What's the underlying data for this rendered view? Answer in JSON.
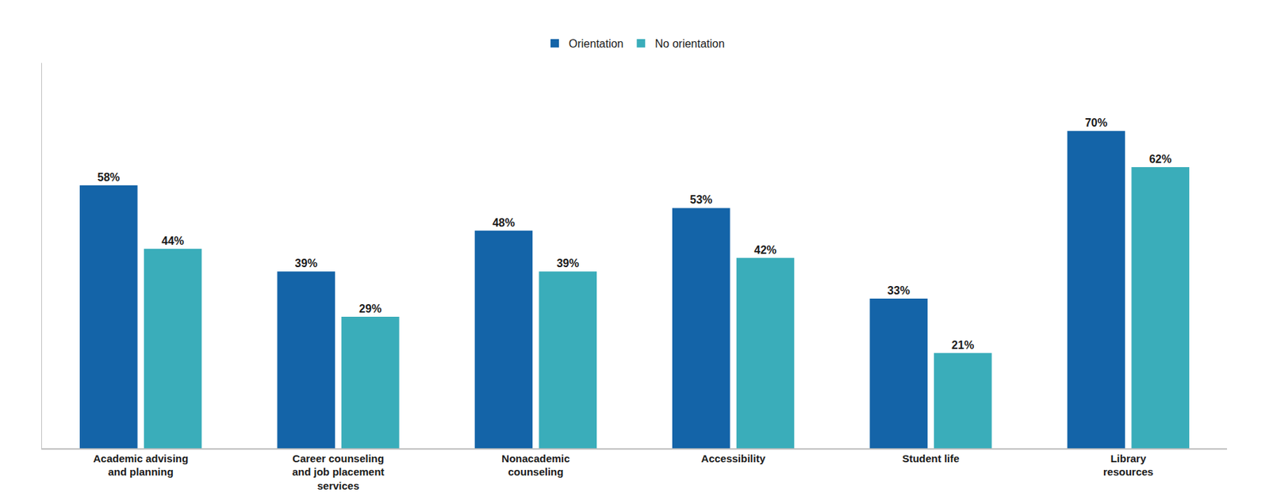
{
  "chart_data": {
    "type": "bar",
    "categories": [
      "Academic advising\nand planning",
      "Career counseling\nand job placement\nservices",
      "Nonacademic\ncounseling",
      "Accessibility",
      "Student life",
      "Library\nresources"
    ],
    "series": [
      {
        "name": "Orientation",
        "color": "#1464a8",
        "values": [
          58,
          39,
          48,
          53,
          33,
          70
        ],
        "value_labels": [
          "58%",
          "39%",
          "48%",
          "53%",
          "33%",
          "70%"
        ]
      },
      {
        "name": "No orientation",
        "color": "#3aadba",
        "values": [
          44,
          29,
          39,
          42,
          21,
          62
        ],
        "value_labels": [
          "44%",
          "29%",
          "39%",
          "42%",
          "21%",
          "62%"
        ]
      }
    ],
    "ylim": [
      0,
      85
    ],
    "grid": false,
    "legend": "top",
    "data_labels": true,
    "tick_labels": "x"
  }
}
